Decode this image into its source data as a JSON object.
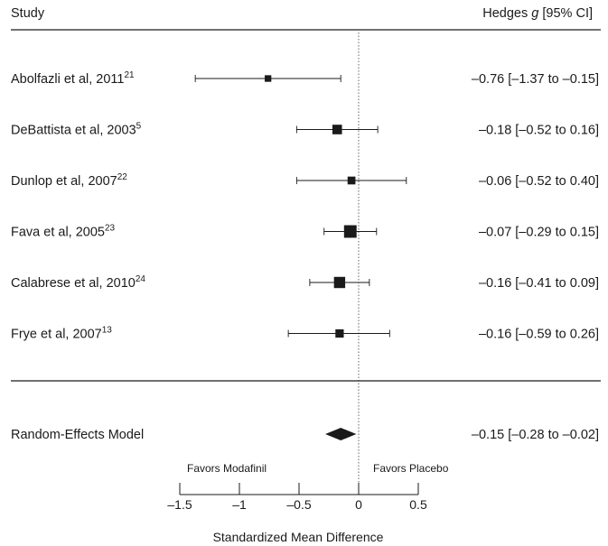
{
  "chart_data": {
    "type": "forest",
    "header": {
      "study_label": "Study",
      "effect_label_prefix": "Hedges ",
      "effect_label_symbol": "g",
      "effect_label_suffix": " [95% CI]"
    },
    "studies": [
      {
        "name": "Abolfazli et al, 2011",
        "ref": "21",
        "estimate": -0.76,
        "lower": -1.37,
        "upper": -0.15,
        "weight": 1,
        "ci_text": "–0.76 [–1.37 to –0.15]"
      },
      {
        "name": "DeBattista et al, 2003",
        "ref": "5",
        "estimate": -0.18,
        "lower": -0.52,
        "upper": 0.16,
        "weight": 4,
        "ci_text": "–0.18 [–0.52 to 0.16]"
      },
      {
        "name": "Dunlop et al, 2007",
        "ref": "22",
        "estimate": -0.06,
        "lower": -0.52,
        "upper": 0.4,
        "weight": 2,
        "ci_text": "–0.06 [–0.52 to 0.40]"
      },
      {
        "name": "Fava et al, 2005",
        "ref": "23",
        "estimate": -0.07,
        "lower": -0.29,
        "upper": 0.15,
        "weight": 9,
        "ci_text": "–0.07 [–0.29 to 0.15]"
      },
      {
        "name": "Calabrese et al, 2010",
        "ref": "24",
        "estimate": -0.16,
        "lower": -0.41,
        "upper": 0.09,
        "weight": 6.5,
        "ci_text": "–0.16 [–0.41 to 0.09]"
      },
      {
        "name": "Frye et al, 2007",
        "ref": "13",
        "estimate": -0.16,
        "lower": -0.59,
        "upper": 0.26,
        "weight": 2.5,
        "ci_text": "–0.16 [–0.59 to 0.26]"
      }
    ],
    "summary": {
      "name": "Random-Effects Model",
      "estimate": -0.15,
      "lower": -0.28,
      "upper": -0.02,
      "ci_text": "–0.15 [–0.28 to –0.02]"
    },
    "annotations": {
      "left": "Favors Modafinil",
      "right": "Favors Placebo"
    },
    "xaxis": {
      "label": "Standardized Mean Difference",
      "ticks": [
        -1.5,
        -1,
        -0.5,
        0,
        0.5
      ],
      "tick_labels": [
        "–1.5",
        "–1",
        "–0.5",
        "0",
        "0.5"
      ],
      "range": [
        -1.5,
        0.5
      ],
      "reference_line": 0
    }
  }
}
